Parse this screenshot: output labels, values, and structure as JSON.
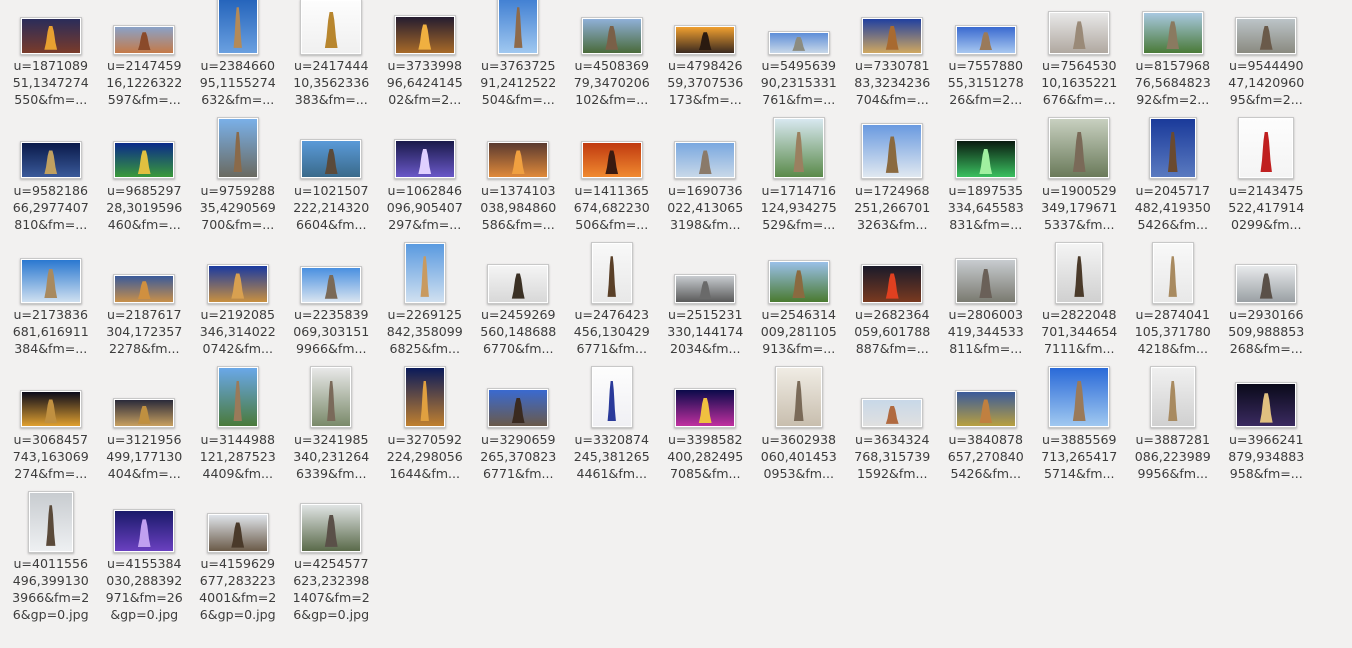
{
  "files": [
    {
      "l1": "u=1871089",
      "l2": "51,1347274",
      "l3": "550&fm=...",
      "icon": "tower-night-photo-icon"
    },
    {
      "l1": "u=2147459",
      "l2": "16,1226322",
      "l3": "597&fm=...",
      "icon": "tower-dusk-photo-icon"
    },
    {
      "l1": "u=2384660",
      "l2": "95,1155274",
      "l3": "632&fm=...",
      "icon": "tower-blue-sky-photo-icon"
    },
    {
      "l1": "u=2417444",
      "l2": "10,3562336",
      "l3": "383&fm=...",
      "icon": "tower-model-photo-icon"
    },
    {
      "l1": "u=3733998",
      "l2": "96,6424145",
      "l3": "02&fm=2...",
      "icon": "fountain-night-photo-icon"
    },
    {
      "l1": "u=3763725",
      "l2": "91,2412522",
      "l3": "504&fm=...",
      "icon": "tower-blue-sky-photo-icon"
    },
    {
      "l1": "u=4508369",
      "l2": "79,3470206",
      "l3": "102&fm=...",
      "icon": "tower-park-photo-icon"
    },
    {
      "l1": "u=4798426",
      "l2": "59,3707536",
      "l3": "173&fm=...",
      "icon": "tower-sunset-photo-icon"
    },
    {
      "l1": "u=5495639",
      "l2": "90,2315331",
      "l3": "761&fm=...",
      "icon": "square-aerial-photo-icon"
    },
    {
      "l1": "u=7330781",
      "l2": "83,3234236",
      "l3": "704&fm=...",
      "icon": "tower-evening-photo-icon"
    },
    {
      "l1": "u=7557880",
      "l2": "55,3151278",
      "l3": "26&fm=2...",
      "icon": "tower-sky-photo-icon"
    },
    {
      "l1": "u=7564530",
      "l2": "10,1635221",
      "l3": "676&fm=...",
      "icon": "tower-blossom-photo-icon"
    },
    {
      "l1": "u=8157968",
      "l2": "76,5684823",
      "l3": "92&fm=2...",
      "icon": "tower-garden-photo-icon"
    },
    {
      "l1": "u=9544490",
      "l2": "47,1420960",
      "l3": "95&fm=2...",
      "icon": "tower-grey-sky-photo-icon"
    },
    {
      "l1": "u=9582186",
      "l2": "66,2977407",
      "l3": "810&fm=...",
      "icon": "tower-night-blue-photo-icon"
    },
    {
      "l1": "u=9685297",
      "l2": "28,3019596",
      "l3": "460&fm=...",
      "icon": "tower-night-lights-photo-icon"
    },
    {
      "l1": "u=9759288",
      "l2": "35,4290569",
      "l3": "700&fm=...",
      "icon": "tower-tree-photo-icon"
    },
    {
      "l1": "u=1021507",
      "l2": "222,214320",
      "l3": "6604&fm...",
      "icon": "tower-lake-photo-icon"
    },
    {
      "l1": "u=1062846",
      "l2": "096,905407",
      "l3": "297&fm=...",
      "icon": "fountain-night-photo-icon"
    },
    {
      "l1": "u=1374103",
      "l2": "038,984860",
      "l3": "586&fm=...",
      "icon": "tower-dusk-photo-icon"
    },
    {
      "l1": "u=1411365",
      "l2": "674,682230",
      "l3": "506&fm=...",
      "icon": "tower-orange-sky-photo-icon"
    },
    {
      "l1": "u=1690736",
      "l2": "022,413065",
      "l3": "3198&fm...",
      "icon": "tower-wide-photo-icon"
    },
    {
      "l1": "u=1714716",
      "l2": "124,934275",
      "l3": "529&fm=...",
      "icon": "tower-trees-photo-icon"
    },
    {
      "l1": "u=1724968",
      "l2": "251,266701",
      "l3": "3263&fm...",
      "icon": "tower-closeup-photo-icon"
    },
    {
      "l1": "u=1897535",
      "l2": "334,645583",
      "l3": "831&fm=...",
      "icon": "fountain-green-photo-icon"
    },
    {
      "l1": "u=1900529",
      "l2": "349,179671",
      "l3": "5337&fm...",
      "icon": "tower-painting-photo-icon"
    },
    {
      "l1": "u=2045717",
      "l2": "482,419350",
      "l3": "5426&fm...",
      "icon": "tower-dark-blue-photo-icon"
    },
    {
      "l1": "u=2143475",
      "l2": "522,417914",
      "l3": "0299&fm...",
      "icon": "tower-red-model-photo-icon"
    },
    {
      "l1": "u=2173836",
      "l2": "681,616911",
      "l3": "384&fm=...",
      "icon": "tower-clouds-photo-icon"
    },
    {
      "l1": "u=2187617",
      "l2": "304,172357",
      "l3": "2278&fm...",
      "icon": "tower-dusk-wide-photo-icon"
    },
    {
      "l1": "u=2192085",
      "l2": "346,314022",
      "l3": "0742&fm...",
      "icon": "tower-lit-photo-icon"
    },
    {
      "l1": "u=2235839",
      "l2": "069,303151",
      "l3": "9966&fm...",
      "icon": "tower-square-photo-icon"
    },
    {
      "l1": "u=2269125",
      "l2": "842,358099",
      "l3": "6825&fm...",
      "icon": "tower-blue-sky-photo-icon"
    },
    {
      "l1": "u=2459269",
      "l2": "560,148688",
      "l3": "6770&fm...",
      "icon": "statue-tower-photo-icon"
    },
    {
      "l1": "u=2476423",
      "l2": "456,130429",
      "l3": "6771&fm...",
      "icon": "tower-white-sky-photo-icon"
    },
    {
      "l1": "u=2515231",
      "l2": "330,144174",
      "l3": "2034&fm...",
      "icon": "tower-hazy-photo-icon"
    },
    {
      "l1": "u=2546314",
      "l2": "009,281105",
      "l3": "913&fm=...",
      "icon": "tower-garden-photo-icon"
    },
    {
      "l1": "u=2682364",
      "l2": "059,601788",
      "l3": "887&fm=...",
      "icon": "tower-red-lights-photo-icon"
    },
    {
      "l1": "u=2806003",
      "l2": "419,344533",
      "l3": "811&fm=...",
      "icon": "tower-grey-photo-icon"
    },
    {
      "l1": "u=2822048",
      "l2": "701,344654",
      "l3": "7111&fm...",
      "icon": "tower-dark-photo-icon"
    },
    {
      "l1": "u=2874041",
      "l2": "105,371780",
      "l3": "4218&fm...",
      "icon": "tower-pale-photo-icon"
    },
    {
      "l1": "u=2930166",
      "l2": "509,988853",
      "l3": "268&fm=...",
      "icon": "statue-photo-icon"
    },
    {
      "l1": "u=3068457",
      "l2": "743,163069",
      "l3": "274&fm=...",
      "icon": "tower-night-wide-photo-icon"
    },
    {
      "l1": "u=3121956",
      "l2": "499,177130",
      "l3": "404&fm=...",
      "icon": "tower-night-wide-photo-icon"
    },
    {
      "l1": "u=3144988",
      "l2": "121,287523",
      "l3": "4409&fm...",
      "icon": "tower-trees-photo-icon"
    },
    {
      "l1": "u=3241985",
      "l2": "340,231264",
      "l3": "6339&fm...",
      "icon": "tower-branches-photo-icon"
    },
    {
      "l1": "u=3270592",
      "l2": "224,298056",
      "l3": "1644&fm...",
      "icon": "tower-night-photo-icon"
    },
    {
      "l1": "u=3290659",
      "l2": "265,370823",
      "l3": "6771&fm...",
      "icon": "tower-roof-photo-icon"
    },
    {
      "l1": "u=3320874",
      "l2": "245,381265",
      "l3": "4461&fm...",
      "icon": "tower-drawing-photo-icon"
    },
    {
      "l1": "u=3398582",
      "l2": "400,282495",
      "l3": "7085&fm...",
      "icon": "fountain-night-photo-icon"
    },
    {
      "l1": "u=3602938",
      "l2": "060,401453",
      "l3": "0953&fm...",
      "icon": "tower-sepia-photo-icon"
    },
    {
      "l1": "u=3634324",
      "l2": "768,315739",
      "l3": "1592&fm...",
      "icon": "tower-small-photo-icon"
    },
    {
      "l1": "u=3840878",
      "l2": "657,270840",
      "l3": "5426&fm...",
      "icon": "tower-festival-photo-icon"
    },
    {
      "l1": "u=3885569",
      "l2": "713,265417",
      "l3": "5714&fm...",
      "icon": "tower-blue-sky-photo-icon"
    },
    {
      "l1": "u=3887281",
      "l2": "086,223989",
      "l3": "9956&fm...",
      "icon": "tower-pale-photo-icon"
    },
    {
      "l1": "u=3966241",
      "l2": "879,934883",
      "l3": "958&fm=...",
      "icon": "tower-night-lights-photo-icon"
    },
    {
      "l1": "u=4011556",
      "l2": "496,399130",
      "l3": "3966&fm=2",
      "l4": "6&gp=0.jpg",
      "icon": "tower-cloudy-photo-icon"
    },
    {
      "l1": "u=4155384",
      "l2": "030,288392",
      "l3": "971&fm=26",
      "l4": "&gp=0.jpg",
      "icon": "fountain-night-photo-icon"
    },
    {
      "l1": "u=4159629",
      "l2": "677,283223",
      "l3": "4001&fm=2",
      "l4": "6&gp=0.jpg",
      "icon": "tower-wall-photo-icon"
    },
    {
      "l1": "u=4254577",
      "l2": "623,232398",
      "l3": "1407&fm=2",
      "l4": "6&gp=0.jpg",
      "icon": "tower-overcast-photo-icon"
    }
  ],
  "colors": {
    "background": "#f2f1f0",
    "label_text": "#3c3c3c"
  }
}
